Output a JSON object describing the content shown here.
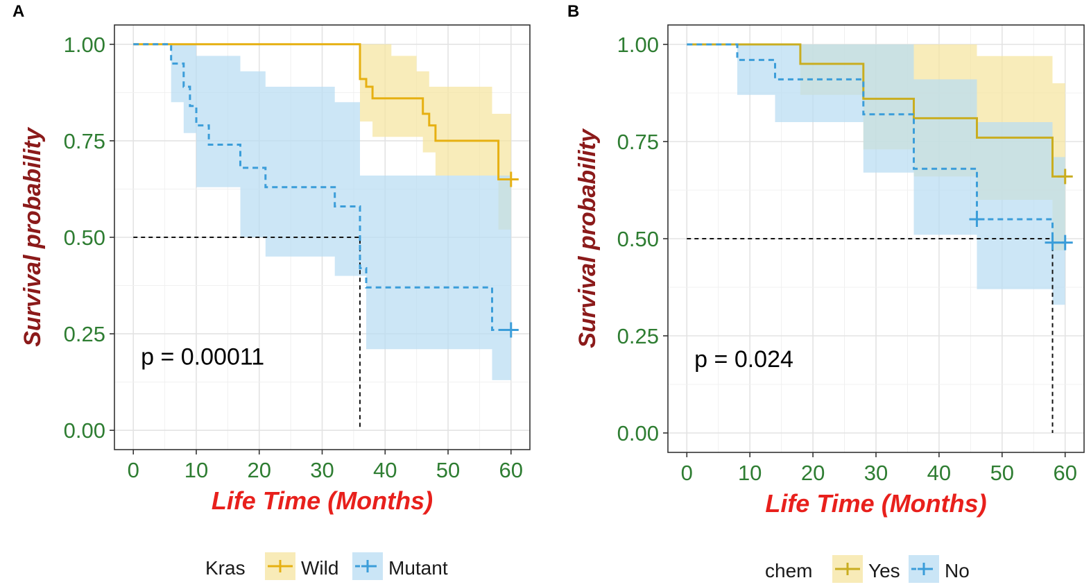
{
  "chart_data": [
    {
      "type": "line",
      "panel_label": "A",
      "title": "",
      "xlabel": "Life Time (Months)",
      "ylabel": "Survival probability",
      "xlim": [
        0,
        60
      ],
      "ylim": [
        0,
        1
      ],
      "xticks": [
        "0",
        "10",
        "20",
        "30",
        "40",
        "50",
        "60"
      ],
      "yticks": [
        "0.00",
        "0.25",
        "0.50",
        "0.75",
        "1.00"
      ],
      "p_value_text": "p = 0.00011",
      "median_survival_months": 36,
      "legend": {
        "title": "Kras",
        "entries": [
          "Wild",
          "Mutant"
        ],
        "placement": "bottom"
      },
      "series": [
        {
          "name": "Wild",
          "color": "#e6b012",
          "fill": "#f5e4a0",
          "dash": false,
          "steps": [
            [
              0,
              1.0
            ],
            [
              36,
              0.91
            ],
            [
              37,
              0.89
            ],
            [
              38,
              0.86
            ],
            [
              46,
              0.82
            ],
            [
              47,
              0.79
            ],
            [
              48,
              0.75
            ],
            [
              58,
              0.65
            ],
            [
              60,
              0.65
            ]
          ],
          "lower": [
            [
              0,
              1.0
            ],
            [
              36,
              0.8
            ],
            [
              38,
              0.76
            ],
            [
              46,
              0.72
            ],
            [
              48,
              0.66
            ],
            [
              58,
              0.52
            ],
            [
              60,
              0.52
            ]
          ],
          "upper": [
            [
              0,
              1.0
            ],
            [
              36,
              1.0
            ],
            [
              41,
              0.97
            ],
            [
              45,
              0.93
            ],
            [
              47,
              0.89
            ],
            [
              57,
              0.82
            ],
            [
              60,
              0.82
            ]
          ],
          "censored": [
            [
              60,
              0.65
            ]
          ]
        },
        {
          "name": "Mutant",
          "color": "#3b9dd9",
          "fill": "#b8dcf3",
          "dash": true,
          "steps": [
            [
              0,
              1.0
            ],
            [
              6,
              0.95
            ],
            [
              8,
              0.89
            ],
            [
              9,
              0.84
            ],
            [
              10,
              0.79
            ],
            [
              12,
              0.74
            ],
            [
              17,
              0.68
            ],
            [
              21,
              0.63
            ],
            [
              32,
              0.58
            ],
            [
              36,
              0.42
            ],
            [
              37,
              0.37
            ],
            [
              57,
              0.26
            ],
            [
              60,
              0.26
            ]
          ],
          "lower": [
            [
              0,
              1.0
            ],
            [
              6,
              0.85
            ],
            [
              8,
              0.77
            ],
            [
              10,
              0.63
            ],
            [
              17,
              0.5
            ],
            [
              21,
              0.45
            ],
            [
              32,
              0.4
            ],
            [
              37,
              0.21
            ],
            [
              57,
              0.13
            ],
            [
              60,
              0.13
            ]
          ],
          "upper": [
            [
              0,
              1.0
            ],
            [
              10,
              0.97
            ],
            [
              17,
              0.93
            ],
            [
              21,
              0.89
            ],
            [
              32,
              0.85
            ],
            [
              36,
              0.66
            ],
            [
              60,
              0.66
            ]
          ],
          "censored": [
            [
              60,
              0.26
            ]
          ]
        }
      ]
    },
    {
      "type": "line",
      "panel_label": "B",
      "title": "",
      "xlabel": "Life Time (Months)",
      "ylabel": "Survival probability",
      "xlim": [
        0,
        60
      ],
      "ylim": [
        0,
        1
      ],
      "xticks": [
        "0",
        "10",
        "20",
        "30",
        "40",
        "50",
        "60"
      ],
      "yticks": [
        "0.00",
        "0.25",
        "0.50",
        "0.75",
        "1.00"
      ],
      "p_value_text": "p = 0.024",
      "median_survival_months": 58,
      "legend": {
        "title": "chem",
        "entries": [
          "Yes",
          "No"
        ],
        "placement": "bottom"
      },
      "series": [
        {
          "name": "Yes",
          "color": "#c9ad20",
          "fill": "#f5e4a0",
          "dash": false,
          "steps": [
            [
              0,
              1.0
            ],
            [
              18,
              0.95
            ],
            [
              28,
              0.86
            ],
            [
              36,
              0.81
            ],
            [
              46,
              0.76
            ],
            [
              58,
              0.66
            ],
            [
              60,
              0.66
            ]
          ],
          "lower": [
            [
              0,
              1.0
            ],
            [
              18,
              0.87
            ],
            [
              28,
              0.73
            ],
            [
              36,
              0.66
            ],
            [
              46,
              0.6
            ],
            [
              58,
              0.47
            ],
            [
              60,
              0.47
            ]
          ],
          "upper": [
            [
              0,
              1.0
            ],
            [
              36,
              1.0
            ],
            [
              46,
              0.97
            ],
            [
              58,
              0.9
            ],
            [
              60,
              0.9
            ]
          ],
          "censored": [
            [
              60,
              0.66
            ]
          ]
        },
        {
          "name": "No",
          "color": "#3b9dd9",
          "fill": "#b8dcf3",
          "dash": true,
          "steps": [
            [
              0,
              1.0
            ],
            [
              8,
              0.96
            ],
            [
              14,
              0.91
            ],
            [
              28,
              0.82
            ],
            [
              36,
              0.68
            ],
            [
              46,
              0.55
            ],
            [
              58,
              0.49
            ],
            [
              60,
              0.49
            ]
          ],
          "lower": [
            [
              0,
              1.0
            ],
            [
              8,
              0.87
            ],
            [
              14,
              0.8
            ],
            [
              28,
              0.67
            ],
            [
              36,
              0.51
            ],
            [
              46,
              0.37
            ],
            [
              58,
              0.33
            ],
            [
              60,
              0.33
            ]
          ],
          "upper": [
            [
              0,
              1.0
            ],
            [
              28,
              1.0
            ],
            [
              36,
              0.91
            ],
            [
              46,
              0.8
            ],
            [
              58,
              0.71
            ],
            [
              60,
              0.71
            ]
          ],
          "censored": [
            [
              46,
              0.55
            ],
            [
              58,
              0.49
            ],
            [
              60,
              0.49
            ]
          ]
        }
      ]
    }
  ]
}
